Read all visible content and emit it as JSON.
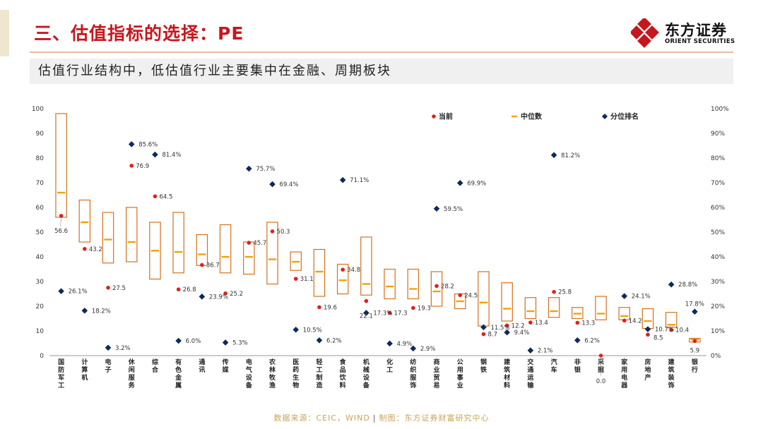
{
  "header": {
    "title": "三、估值指标的选择：PE",
    "logo_cn": "东方证券",
    "logo_en": "ORIENT SECURITIES"
  },
  "subtitle": "估值行业结构中，低估值行业主要集中在金融、周期板块",
  "footer": {
    "source": "数据来源：CEIC，WIND",
    "maker": "制图：东方证券财富研究中心"
  },
  "colors": {
    "title": "#c8161d",
    "box": "#d4711c",
    "median": "#f0a20c",
    "current": "#e02020",
    "rank": "#0d2a5c",
    "footer": "#c8a45a"
  },
  "chart_data": {
    "type": "box-range",
    "legend": [
      "当前",
      "中位数",
      "分位排名"
    ],
    "legend_position": "top-right",
    "left_axis": {
      "min": 0,
      "max": 100,
      "ticks": [
        "0",
        "10",
        "20",
        "30",
        "40",
        "50",
        "60",
        "70",
        "80",
        "90",
        "100"
      ]
    },
    "right_axis": {
      "min": 0,
      "max": 100,
      "ticks": [
        "0%",
        "10%",
        "20%",
        "30%",
        "40%",
        "50%",
        "60%",
        "70%",
        "80%",
        "90%",
        "100%"
      ]
    },
    "categories": [
      "国防军工",
      "计算机",
      "电子",
      "休闲服务",
      "综合",
      "有色金属",
      "通讯",
      "传媒",
      "电气设备",
      "农林牧渔",
      "医药生物",
      "轻工制造",
      "食品饮料",
      "机械设备",
      "化工",
      "纺织服饰",
      "商业贸易",
      "公用事业",
      "钢铁",
      "建筑材料",
      "交通运输",
      "汽车",
      "非银",
      "采掘",
      "家用电器",
      "房地产",
      "建筑装饰",
      "银行"
    ],
    "box_low": [
      56,
      46,
      37.5,
      38,
      31,
      33.5,
      36.5,
      33.5,
      33,
      29,
      34.5,
      24,
      25,
      24.5,
      23,
      23,
      20,
      19,
      12,
      14,
      15,
      15.5,
      15,
      14.5,
      14.5,
      11,
      11.5,
      5.5
    ],
    "box_high": [
      98,
      63,
      58,
      60,
      54,
      58,
      49,
      53,
      46,
      54,
      42,
      43,
      37,
      48,
      35,
      35,
      34,
      25,
      34,
      29.5,
      23.5,
      23.5,
      19.5,
      24,
      19.5,
      19,
      17.5,
      7
    ],
    "median": [
      66,
      54,
      47,
      46,
      42.5,
      42,
      41,
      40,
      40,
      39,
      38,
      34,
      30.5,
      29,
      28,
      27,
      26,
      22,
      21.5,
      19,
      18,
      18,
      17,
      17,
      16,
      14,
      12.5,
      6.5
    ],
    "current": [
      56.6,
      43.2,
      27.5,
      76.9,
      64.5,
      26.8,
      36.7,
      25.2,
      45.7,
      50.3,
      31.1,
      19.6,
      34.8,
      22.1,
      17.3,
      19.3,
      28.2,
      24.5,
      8.7,
      12.2,
      13.4,
      25.8,
      13.3,
      0.0,
      14.2,
      8.5,
      10.4,
      5.9
    ],
    "current_labels": [
      "56.6",
      "43.2",
      "27.5",
      "76.9",
      "64.5",
      "26.8",
      "36.7",
      "25.2",
      "45.7",
      "50.3",
      "31.1",
      "19.6",
      "34.8",
      "22.1",
      "17.3",
      "19.3",
      "28.2",
      "24.5",
      "8.7",
      "12.2",
      "13.4",
      "25.8",
      "13.3",
      "0.0",
      "14.2",
      "8.5",
      "10.4",
      "5.9"
    ],
    "rank_pct": [
      26.1,
      18.2,
      3.2,
      85.6,
      81.4,
      6.0,
      23.9,
      5.3,
      75.7,
      69.4,
      10.5,
      6.2,
      71.1,
      17.3,
      4.9,
      2.9,
      59.5,
      69.9,
      11.5,
      9.4,
      2.1,
      81.2,
      6.2,
      null,
      24.1,
      10.7,
      28.8,
      17.8
    ],
    "rank_labels": [
      "26.1%",
      "18.2%",
      "3.2%",
      "85.6%",
      "81.4%",
      "6.0%",
      "23.9%",
      "5.3%",
      "75.7%",
      "69.4%",
      "10.5%",
      "6.2%",
      "71.1%",
      "17.3%",
      "4.9%",
      "2.9%",
      "59.5%",
      "69.9%",
      "11.5%",
      "9.4%",
      "2.1%",
      "81.2%",
      "6.2%",
      "",
      "24.1%",
      "10.7%",
      "28.8%",
      "17.8%"
    ]
  }
}
